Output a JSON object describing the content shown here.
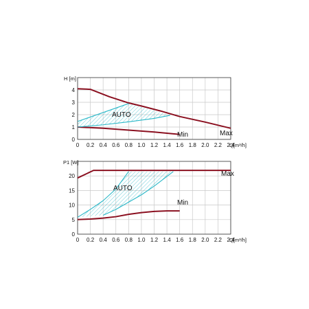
{
  "colors": {
    "curve": "#8b1020",
    "auto": "#2ab8c8",
    "grid": "#c8c8c8",
    "axis": "#333333"
  },
  "chart_data": [
    {
      "type": "line",
      "ylabel": "H [m]",
      "xlabel": "Q[m³/h]",
      "xlim": [
        0,
        2.4
      ],
      "ylim": [
        0,
        5
      ],
      "x_ticks": [
        "0",
        "0.2",
        "0.4",
        "0.6",
        "0.8",
        "1.0",
        "1.2",
        "1.4",
        "1.6",
        "1.8",
        "2.0",
        "2.2",
        "2.4"
      ],
      "y_ticks": [
        "0",
        "1",
        "2",
        "3",
        "4"
      ],
      "grid": true,
      "series": [
        {
          "name": "Max",
          "x": [
            0,
            0.2,
            0.5,
            0.8,
            1.0,
            1.3,
            1.6,
            2.0,
            2.4
          ],
          "y": [
            4.1,
            4.05,
            3.45,
            2.95,
            2.7,
            2.3,
            1.85,
            1.4,
            0.9
          ]
        },
        {
          "name": "Min",
          "x": [
            0,
            0.4,
            0.8,
            1.2,
            1.6
          ],
          "y": [
            1.0,
            0.9,
            0.75,
            0.6,
            0.4
          ]
        },
        {
          "name": "AUTO",
          "x": [
            0,
            0.8
          ],
          "y": [
            1.45,
            2.9
          ]
        },
        {
          "name": "AUTO",
          "x": [
            0,
            0.4,
            0.8,
            1.2,
            1.45
          ],
          "y": [
            1.0,
            1.18,
            1.42,
            1.7,
            1.95
          ]
        }
      ],
      "annotations": [
        "AUTO",
        "Min",
        "Max"
      ]
    },
    {
      "type": "line",
      "ylabel": "P1 [W]",
      "xlabel": "Q[m³/h]",
      "xlim": [
        0,
        2.4
      ],
      "ylim": [
        0,
        25
      ],
      "x_ticks": [
        "0",
        "0.2",
        "0.4",
        "0.6",
        "0.8",
        "1.0",
        "1.2",
        "1.4",
        "1.6",
        "1.8",
        "2.0",
        "2.2",
        "2.4"
      ],
      "y_ticks": [
        "0",
        "5",
        "10",
        "15",
        "20"
      ],
      "grid": true,
      "series": [
        {
          "name": "Max",
          "x": [
            0,
            0.25,
            0.5,
            1.0,
            1.5,
            2.0,
            2.4
          ],
          "y": [
            19.3,
            21.9,
            21.9,
            21.9,
            21.9,
            21.9,
            21.9
          ]
        },
        {
          "name": "Min",
          "x": [
            0,
            0.2,
            0.4,
            0.6,
            0.8,
            1.0,
            1.2,
            1.4,
            1.6
          ],
          "y": [
            5.0,
            5.2,
            5.5,
            6.0,
            6.8,
            7.4,
            7.8,
            8.0,
            8.0
          ]
        },
        {
          "name": "AUTO",
          "x": [
            0,
            0.2,
            0.4,
            0.6,
            0.8
          ],
          "y": [
            5.8,
            8.5,
            11.5,
            15.5,
            21.5
          ]
        },
        {
          "name": "AUTO",
          "x": [
            0.4,
            0.6,
            0.8,
            1.0,
            1.2,
            1.5
          ],
          "y": [
            6.5,
            8.5,
            11.0,
            13.5,
            16.5,
            21.5
          ]
        }
      ],
      "annotations": [
        "AUTO",
        "Min",
        "Max"
      ]
    }
  ]
}
